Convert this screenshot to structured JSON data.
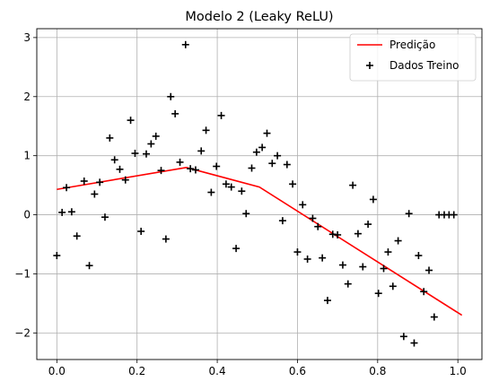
{
  "chart_data": {
    "type": "scatter",
    "title": "Modelo 2 (Leaky ReLU)",
    "xlabel": "",
    "ylabel": "",
    "xlim": [
      -0.05,
      1.06
    ],
    "ylim": [
      -2.45,
      3.15
    ],
    "xticks": [
      0.0,
      0.2,
      0.4,
      0.6,
      0.8,
      1.0
    ],
    "xtick_labels": [
      "0.0",
      "0.2",
      "0.4",
      "0.6",
      "0.8",
      "1.0"
    ],
    "yticks": [
      -2,
      -1,
      0,
      1,
      2,
      3
    ],
    "ytick_labels": [
      "−2",
      "−1",
      "0",
      "1",
      "2",
      "3"
    ],
    "grid": true,
    "legend_position": "top-right",
    "series": [
      {
        "name": "Predição",
        "kind": "line",
        "color": "#ff0000",
        "x": [
          0.0,
          0.323,
          0.505,
          1.01
        ],
        "y": [
          0.43,
          0.8,
          0.47,
          -1.7
        ]
      },
      {
        "name": "Dados Treino",
        "kind": "scatter",
        "marker": "plus",
        "color": "#000000",
        "x": [
          0.0,
          0.013,
          0.024,
          0.037,
          0.05,
          0.068,
          0.081,
          0.094,
          0.107,
          0.12,
          0.132,
          0.144,
          0.157,
          0.171,
          0.184,
          0.195,
          0.21,
          0.223,
          0.235,
          0.247,
          0.26,
          0.272,
          0.284,
          0.295,
          0.307,
          0.321,
          0.333,
          0.346,
          0.36,
          0.372,
          0.385,
          0.398,
          0.41,
          0.422,
          0.435,
          0.447,
          0.461,
          0.472,
          0.486,
          0.498,
          0.512,
          0.524,
          0.537,
          0.55,
          0.563,
          0.574,
          0.588,
          0.6,
          0.613,
          0.625,
          0.638,
          0.651,
          0.662,
          0.675,
          0.688,
          0.7,
          0.713,
          0.726,
          0.738,
          0.751,
          0.763,
          0.776,
          0.789,
          0.802,
          0.815,
          0.826,
          0.838,
          0.851,
          0.865,
          0.878,
          0.891,
          0.902,
          0.915,
          0.928,
          0.941,
          0.953,
          0.966,
          0.978,
          0.99
        ],
        "y": [
          -0.69,
          0.04,
          0.46,
          0.05,
          -0.36,
          0.57,
          -0.86,
          0.35,
          0.55,
          -0.04,
          1.3,
          0.93,
          0.77,
          0.59,
          1.6,
          1.04,
          -0.28,
          1.03,
          1.2,
          1.33,
          0.75,
          -0.41,
          2.0,
          1.71,
          0.89,
          2.88,
          0.78,
          0.76,
          1.08,
          1.43,
          0.38,
          0.82,
          1.68,
          0.52,
          0.47,
          -0.57,
          0.4,
          0.02,
          0.79,
          1.06,
          1.14,
          1.38,
          0.87,
          1.0,
          -0.1,
          0.85,
          0.52,
          -0.63,
          0.17,
          -0.75,
          -0.06,
          -0.2,
          -0.73,
          -1.45,
          -0.33,
          -0.34,
          -0.85,
          -1.17,
          0.5,
          -0.32,
          -0.88,
          -0.16,
          0.26,
          -1.33,
          -0.91,
          -0.63,
          -1.21,
          -0.44,
          -2.06,
          0.02,
          -2.17,
          -0.69,
          -1.3,
          -0.94,
          -1.73,
          0,
          0,
          0,
          0
        ]
      }
    ]
  }
}
